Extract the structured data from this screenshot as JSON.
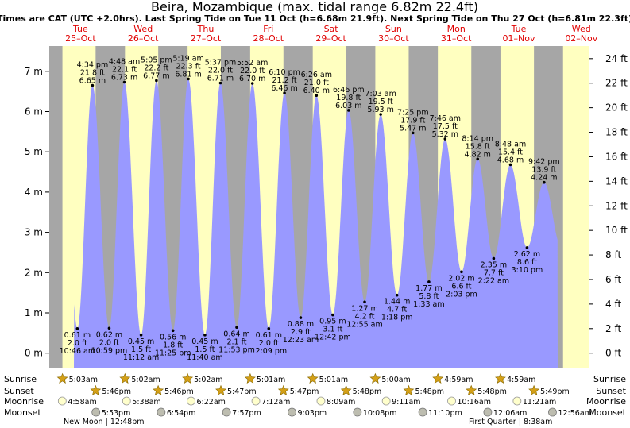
{
  "chart_data": {
    "type": "area",
    "title": "Beira, Mozambique (max. tidal range 6.82m 22.4ft)",
    "subtitle": "Times are CAT (UTC +2.0hrs). Last Spring Tide on Tue 11 Oct (h=6.68m 21.9ft). Next Spring Tide on Thu 27 Oct (h=6.81m 22.3ft)",
    "days": [
      {
        "dow": "Tue",
        "date": "25–Oct"
      },
      {
        "dow": "Wed",
        "date": "26–Oct"
      },
      {
        "dow": "Thu",
        "date": "27–Oct"
      },
      {
        "dow": "Fri",
        "date": "28–Oct"
      },
      {
        "dow": "Sat",
        "date": "29–Oct"
      },
      {
        "dow": "Sun",
        "date": "30–Oct"
      },
      {
        "dow": "Mon",
        "date": "31–Oct"
      },
      {
        "dow": "Tue",
        "date": "01–Nov"
      },
      {
        "dow": "Wed",
        "date": "02–Nov"
      }
    ],
    "y_left": {
      "unit": "m",
      "ticks": [
        0,
        1,
        2,
        3,
        4,
        5,
        6,
        7
      ],
      "labels": [
        "0 m",
        "1 m",
        "2 m",
        "3 m",
        "4 m",
        "5 m",
        "6 m",
        "7 m"
      ]
    },
    "y_right": {
      "unit": "ft",
      "ticks": [
        0,
        2,
        4,
        6,
        8,
        10,
        12,
        14,
        16,
        18,
        20,
        22,
        24
      ],
      "labels": [
        "0 ft",
        "2 ft",
        "4 ft",
        "6 ft",
        "8 ft",
        "10 ft",
        "12 ft",
        "14 ft",
        "16 ft",
        "18 ft",
        "20 ft",
        "22 ft",
        "24 ft"
      ]
    },
    "ylim_m": [
      -0.4,
      7.7
    ],
    "tides": [
      {
        "type": "low",
        "day": 0,
        "hour": 10.77,
        "time": "10:46 am",
        "m": 0.61,
        "ft": "2.0 ft",
        "m_label": "0.61 m"
      },
      {
        "type": "high",
        "day": 0,
        "hour": 16.57,
        "time": "4:34 pm",
        "m": 6.65,
        "ft": "21.8 ft",
        "m_label": "6.65 m"
      },
      {
        "type": "low",
        "day": 0,
        "hour": 22.98,
        "time": "10:59 pm",
        "m": 0.62,
        "ft": "2.0 ft",
        "m_label": "0.62 m"
      },
      {
        "type": "high",
        "day": 1,
        "hour": 4.8,
        "time": "4:48 am",
        "m": 6.73,
        "ft": "22.1 ft",
        "m_label": "6.73 m"
      },
      {
        "type": "low",
        "day": 1,
        "hour": 11.2,
        "time": "11:12 am",
        "m": 0.45,
        "ft": "1.5 ft",
        "m_label": "0.45 m"
      },
      {
        "type": "high",
        "day": 1,
        "hour": 17.08,
        "time": "5:05 pm",
        "m": 6.77,
        "ft": "22.2 ft",
        "m_label": "6.77 m"
      },
      {
        "type": "low",
        "day": 1,
        "hour": 23.42,
        "time": "11:25 pm",
        "m": 0.56,
        "ft": "1.8 ft",
        "m_label": "0.56 m"
      },
      {
        "type": "high",
        "day": 2,
        "hour": 5.32,
        "time": "5:19 am",
        "m": 6.81,
        "ft": "22.3 ft",
        "m_label": "6.81 m"
      },
      {
        "type": "low",
        "day": 2,
        "hour": 11.67,
        "time": "11:40 am",
        "m": 0.45,
        "ft": "1.5 ft",
        "m_label": "0.45 m"
      },
      {
        "type": "high",
        "day": 2,
        "hour": 17.62,
        "time": "5:37 pm",
        "m": 6.71,
        "ft": "22.0 ft",
        "m_label": "6.71 m"
      },
      {
        "type": "low",
        "day": 2,
        "hour": 23.88,
        "time": "11:53 pm",
        "m": 0.64,
        "ft": "2.1 ft",
        "m_label": "0.64 m"
      },
      {
        "type": "high",
        "day": 3,
        "hour": 5.87,
        "time": "5:52 am",
        "m": 6.7,
        "ft": "22.0 ft",
        "m_label": "6.70 m"
      },
      {
        "type": "low",
        "day": 3,
        "hour": 12.15,
        "time": "12:09 pm",
        "m": 0.61,
        "ft": "2.0 ft",
        "m_label": "0.61 m"
      },
      {
        "type": "high",
        "day": 3,
        "hour": 18.17,
        "time": "6:10 pm",
        "m": 6.46,
        "ft": "21.2 ft",
        "m_label": "6.46 m"
      },
      {
        "type": "low",
        "day": 4,
        "hour": 0.38,
        "time": "12:23 am",
        "m": 0.88,
        "ft": "2.9 ft",
        "m_label": "0.88 m"
      },
      {
        "type": "high",
        "day": 4,
        "hour": 6.43,
        "time": "6:26 am",
        "m": 6.4,
        "ft": "21.0 ft",
        "m_label": "6.40 m"
      },
      {
        "type": "low",
        "day": 4,
        "hour": 12.7,
        "time": "12:42 pm",
        "m": 0.95,
        "ft": "3.1 ft",
        "m_label": "0.95 m"
      },
      {
        "type": "high",
        "day": 4,
        "hour": 18.77,
        "time": "6:46 pm",
        "m": 6.03,
        "ft": "19.8 ft",
        "m_label": "6.03 m"
      },
      {
        "type": "low",
        "day": 5,
        "hour": 0.92,
        "time": "12:55 am",
        "m": 1.27,
        "ft": "4.2 ft",
        "m_label": "1.27 m"
      },
      {
        "type": "high",
        "day": 5,
        "hour": 7.05,
        "time": "7:03 am",
        "m": 5.93,
        "ft": "19.5 ft",
        "m_label": "5.93 m"
      },
      {
        "type": "low",
        "day": 5,
        "hour": 13.3,
        "time": "1:18 pm",
        "m": 1.44,
        "ft": "4.7 ft",
        "m_label": "1.44 m"
      },
      {
        "type": "high",
        "day": 5,
        "hour": 19.42,
        "time": "7:25 pm",
        "m": 5.47,
        "ft": "17.9 ft",
        "m_label": "5.47 m"
      },
      {
        "type": "low",
        "day": 6,
        "hour": 1.55,
        "time": "1:33 am",
        "m": 1.77,
        "ft": "5.8 ft",
        "m_label": "1.77 m"
      },
      {
        "type": "high",
        "day": 6,
        "hour": 7.77,
        "time": "7:46 am",
        "m": 5.32,
        "ft": "17.5 ft",
        "m_label": "5.32 m"
      },
      {
        "type": "low",
        "day": 6,
        "hour": 14.05,
        "time": "2:03 pm",
        "m": 2.02,
        "ft": "6.6 ft",
        "m_label": "2.02 m"
      },
      {
        "type": "high",
        "day": 6,
        "hour": 20.23,
        "time": "8:14 pm",
        "m": 4.82,
        "ft": "15.8 ft",
        "m_label": "4.82 m"
      },
      {
        "type": "low",
        "day": 7,
        "hour": 2.37,
        "time": "2:22 am",
        "m": 2.35,
        "ft": "7.7 ft",
        "m_label": "2.35 m"
      },
      {
        "type": "high",
        "day": 7,
        "hour": 8.8,
        "time": "8:48 am",
        "m": 4.68,
        "ft": "15.4 ft",
        "m_label": "4.68 m"
      },
      {
        "type": "low",
        "day": 7,
        "hour": 15.17,
        "time": "3:10 pm",
        "m": 2.62,
        "ft": "8.6 ft",
        "m_label": "2.62 m"
      },
      {
        "type": "high",
        "day": 7,
        "hour": 21.7,
        "time": "9:42 pm",
        "m": 4.24,
        "ft": "13.9 ft",
        "m_label": "4.24 m"
      }
    ],
    "daylight": [
      {
        "day": 0,
        "sunrise": "5:03am",
        "sunset": "5:46pm",
        "rise_h": 5.05,
        "set_h": 17.77
      },
      {
        "day": 1,
        "sunrise": "5:02am",
        "sunset": "5:46pm",
        "rise_h": 5.03,
        "set_h": 17.77
      },
      {
        "day": 2,
        "sunrise": "5:02am",
        "sunset": "5:47pm",
        "rise_h": 5.03,
        "set_h": 17.78
      },
      {
        "day": 3,
        "sunrise": "5:01am",
        "sunset": "5:47pm",
        "rise_h": 5.02,
        "set_h": 17.78
      },
      {
        "day": 4,
        "sunrise": "5:01am",
        "sunset": "5:48pm",
        "rise_h": 5.02,
        "set_h": 17.8
      },
      {
        "day": 5,
        "sunrise": "5:00am",
        "sunset": "5:48pm",
        "rise_h": 5.0,
        "set_h": 17.8
      },
      {
        "day": 6,
        "sunrise": "4:59am",
        "sunset": "5:48pm",
        "rise_h": 4.98,
        "set_h": 17.8
      },
      {
        "day": 7,
        "sunrise": "4:59am",
        "sunset": "5:49pm",
        "rise_h": 4.98,
        "set_h": 17.82
      }
    ],
    "moonrise": [
      {
        "day": 0,
        "time": "4:58am",
        "h": 4.97
      },
      {
        "day": 1,
        "time": "5:38am",
        "h": 5.63
      },
      {
        "day": 2,
        "time": "6:22am",
        "h": 6.37
      },
      {
        "day": 3,
        "time": "7:12am",
        "h": 7.2
      },
      {
        "day": 4,
        "time": "8:09am",
        "h": 8.15
      },
      {
        "day": 5,
        "time": "9:11am",
        "h": 9.18
      },
      {
        "day": 6,
        "time": "10:16am",
        "h": 10.27
      },
      {
        "day": 7,
        "time": "11:21am",
        "h": 11.35
      }
    ],
    "moonset": [
      {
        "day": 0,
        "time": "5:53pm",
        "h": 17.88
      },
      {
        "day": 1,
        "time": "6:54pm",
        "h": 18.9
      },
      {
        "day": 2,
        "time": "7:57pm",
        "h": 19.95
      },
      {
        "day": 3,
        "time": "9:03pm",
        "h": 21.05
      },
      {
        "day": 4,
        "time": "10:08pm",
        "h": 22.13
      },
      {
        "day": 5,
        "time": "11:10pm",
        "h": 23.17
      },
      {
        "day": 7,
        "time": "12:06am",
        "h": 0.1
      },
      {
        "day": 8,
        "time": "12:56am",
        "h": 0.93
      }
    ],
    "row_labels": {
      "sunrise": "Sunrise",
      "sunset": "Sunset",
      "moonrise": "Moonrise",
      "moonset": "Moonset"
    },
    "moon_phases": [
      {
        "label": "New Moon",
        "time": "12:48pm",
        "day": 0
      },
      {
        "label": "First Quarter",
        "time": "8:38am",
        "day": 6
      }
    ],
    "colors": {
      "night": "#a6a6a6",
      "day": "#ffffc0",
      "tide": "#9999ff",
      "day_text": "#e00000",
      "star": "#d4a017",
      "moon_rise": "#ffffcc",
      "moon_set": "#bdbdb0"
    }
  }
}
